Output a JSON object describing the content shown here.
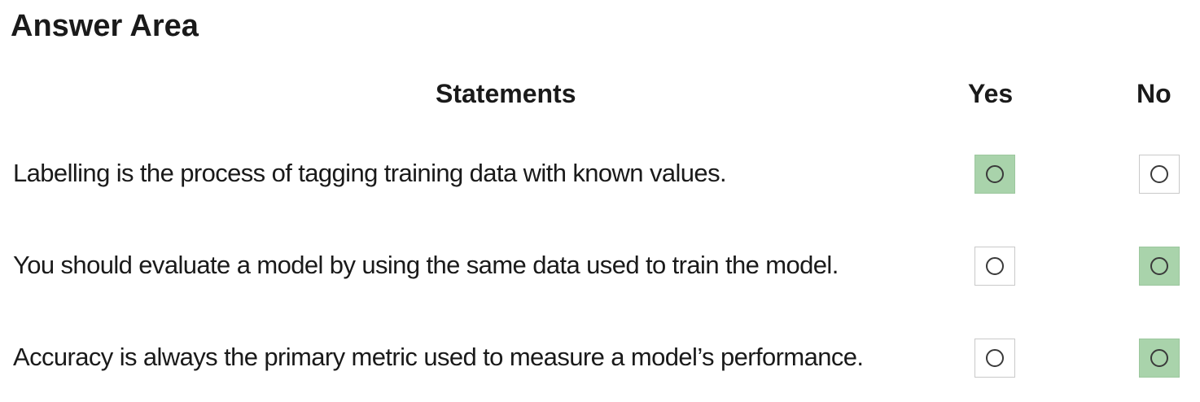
{
  "title": "Answer Area",
  "headers": {
    "statements": "Statements",
    "yes": "Yes",
    "no": "No"
  },
  "statements": [
    {
      "text": "Labelling is the process of tagging training data with known values.",
      "answer": "yes"
    },
    {
      "text": "You should evaluate a model by using the same data used to train the model.",
      "answer": "no"
    },
    {
      "text": "Accuracy is always the primary metric used to measure a model’s performance.",
      "answer": "no"
    }
  ],
  "colors": {
    "selected_fill": "#a9d3ab",
    "box_border": "#c9c9c9",
    "text": "#1a1a1a"
  }
}
